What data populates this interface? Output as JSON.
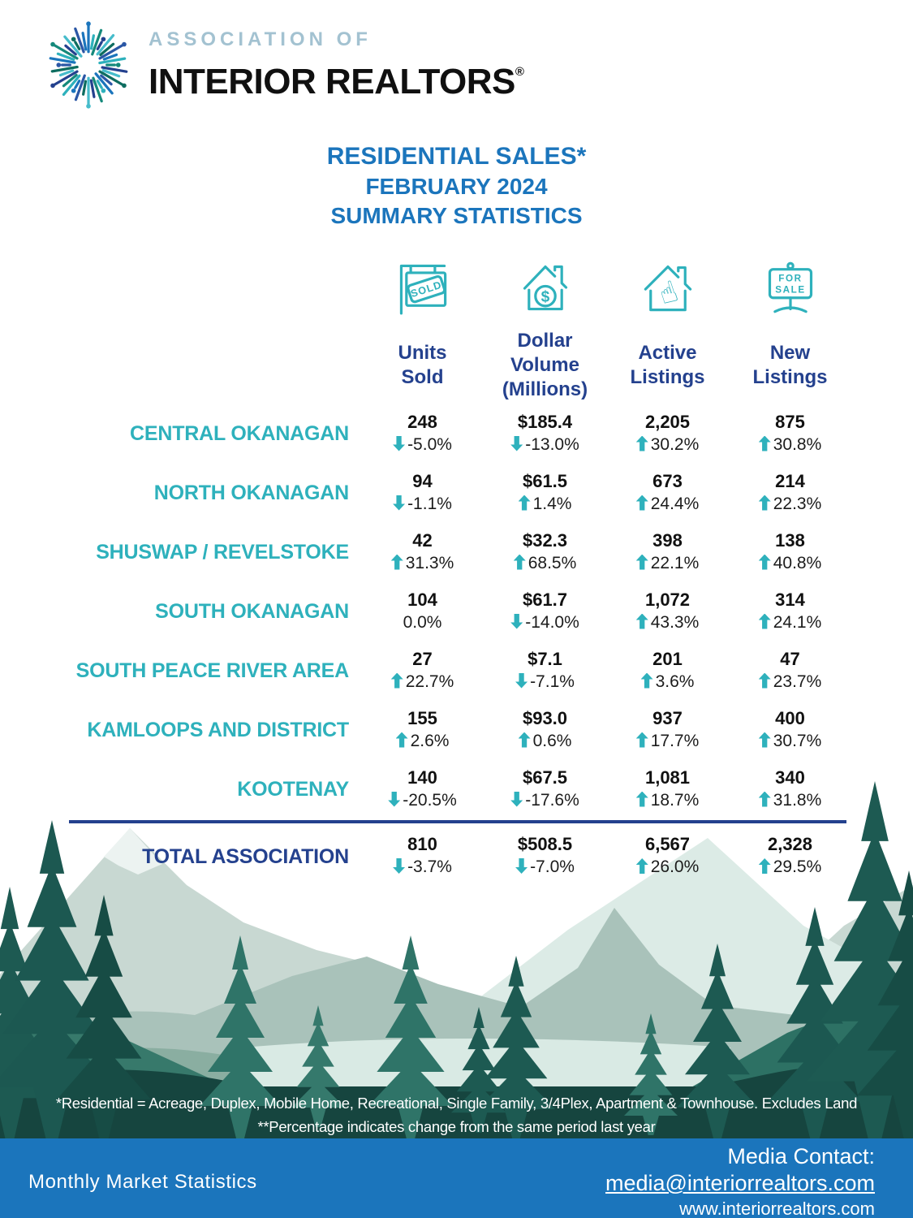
{
  "logo": {
    "association_of": "ASSOCIATION OF",
    "interior_realtors": "INTERIOR REALTORS",
    "registered_mark": "®"
  },
  "title": {
    "line1": "RESIDENTIAL SALES*",
    "line2": "FEBRUARY 2024",
    "line3": "SUMMARY STATISTICS"
  },
  "table": {
    "columns": [
      {
        "icon": "sold-sign-icon",
        "label": "Units\nSold"
      },
      {
        "icon": "dollar-house-icon",
        "label": "Dollar\nVolume\n(Millions)"
      },
      {
        "icon": "house-click-icon",
        "label": "Active\nListings"
      },
      {
        "icon": "for-sale-sign-icon",
        "label": "New\nListings"
      }
    ],
    "rows": [
      {
        "region": "CENTRAL OKANAGAN",
        "total": false,
        "cells": [
          {
            "value": "248",
            "dir": "down",
            "pct": "-5.0%"
          },
          {
            "value": "$185.4",
            "dir": "down",
            "pct": "-13.0%"
          },
          {
            "value": "2,205",
            "dir": "up",
            "pct": "30.2%"
          },
          {
            "value": "875",
            "dir": "up",
            "pct": "30.8%"
          }
        ]
      },
      {
        "region": "NORTH OKANAGAN",
        "total": false,
        "cells": [
          {
            "value": "94",
            "dir": "down",
            "pct": "-1.1%"
          },
          {
            "value": "$61.5",
            "dir": "up",
            "pct": "1.4%"
          },
          {
            "value": "673",
            "dir": "up",
            "pct": "24.4%"
          },
          {
            "value": "214",
            "dir": "up",
            "pct": "22.3%"
          }
        ]
      },
      {
        "region": "SHUSWAP / REVELSTOKE",
        "total": false,
        "cells": [
          {
            "value": "42",
            "dir": "up",
            "pct": "31.3%"
          },
          {
            "value": "$32.3",
            "dir": "up",
            "pct": "68.5%"
          },
          {
            "value": "398",
            "dir": "up",
            "pct": "22.1%"
          },
          {
            "value": "138",
            "dir": "up",
            "pct": "40.8%"
          }
        ]
      },
      {
        "region": "SOUTH OKANAGAN",
        "total": false,
        "cells": [
          {
            "value": "104",
            "dir": "none",
            "pct": "0.0%"
          },
          {
            "value": "$61.7",
            "dir": "down",
            "pct": "-14.0%"
          },
          {
            "value": "1,072",
            "dir": "up",
            "pct": "43.3%"
          },
          {
            "value": "314",
            "dir": "up",
            "pct": "24.1%"
          }
        ]
      },
      {
        "region": "SOUTH PEACE RIVER AREA",
        "total": false,
        "cells": [
          {
            "value": "27",
            "dir": "up",
            "pct": "22.7%"
          },
          {
            "value": "$7.1",
            "dir": "down",
            "pct": "-7.1%"
          },
          {
            "value": "201",
            "dir": "up",
            "pct": "3.6%"
          },
          {
            "value": "47",
            "dir": "up",
            "pct": "23.7%"
          }
        ]
      },
      {
        "region": "KAMLOOPS AND DISTRICT",
        "total": false,
        "cells": [
          {
            "value": "155",
            "dir": "up",
            "pct": "2.6%"
          },
          {
            "value": "$93.0",
            "dir": "up",
            "pct": "0.6%"
          },
          {
            "value": "937",
            "dir": "up",
            "pct": "17.7%"
          },
          {
            "value": "400",
            "dir": "up",
            "pct": "30.7%"
          }
        ]
      },
      {
        "region": "KOOTENAY",
        "total": false,
        "cells": [
          {
            "value": "140",
            "dir": "down",
            "pct": "-20.5%"
          },
          {
            "value": "$67.5",
            "dir": "down",
            "pct": "-17.6%"
          },
          {
            "value": "1,081",
            "dir": "up",
            "pct": "18.7%"
          },
          {
            "value": "340",
            "dir": "up",
            "pct": "31.8%"
          }
        ]
      },
      {
        "region": "TOTAL ASSOCIATION",
        "total": true,
        "cells": [
          {
            "value": "810",
            "dir": "down",
            "pct": "-3.7%"
          },
          {
            "value": "$508.5",
            "dir": "down",
            "pct": "-7.0%"
          },
          {
            "value": "6,567",
            "dir": "up",
            "pct": "26.0%"
          },
          {
            "value": "2,328",
            "dir": "up",
            "pct": "29.5%"
          }
        ]
      }
    ]
  },
  "icon_texts": {
    "sold": "SOLD",
    "dollar": "$",
    "for": "FOR",
    "sale": "SALE"
  },
  "footnotes": {
    "line1": "*Residential = Acreage, Duplex, Mobile Home, Recreational, Single Family, 3/4Plex, Apartment & Townhouse. Excludes Land",
    "line2": "**Percentage indicates change from the same period last year"
  },
  "footer": {
    "left_text": "Monthly Market Statistics",
    "contact_heading": "Media Contact:",
    "email": "media@interiorrealtors.com",
    "website": "www.interiorrealtors.com"
  },
  "colors": {
    "accent_teal": "#2eb1bc",
    "navy": "#24418e",
    "title_blue": "#1b75bc",
    "footer_bar_blue": "#1b75bc"
  }
}
